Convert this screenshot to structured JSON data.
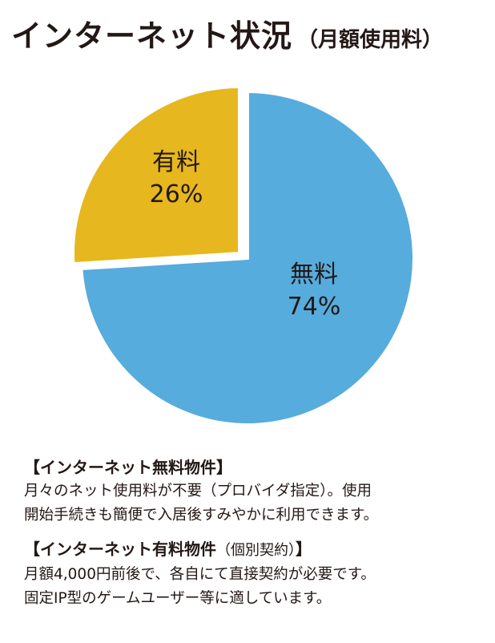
{
  "title": {
    "main": "インターネット状況",
    "sub": "（月額使用料）"
  },
  "chart_data": {
    "type": "pie",
    "title": "インターネット状況（月額使用料）",
    "slices": [
      {
        "name": "無料",
        "value": 74,
        "label": "74%",
        "color": "#56ACDD"
      },
      {
        "name": "有料",
        "value": 26,
        "label": "26%",
        "color": "#E6B71E"
      }
    ]
  },
  "notes": {
    "free": {
      "heading": "【インターネット無料物件】",
      "lines": [
        "月々のネット使用料が不要（プロバイダ指定）。使用",
        "開始手続きも簡便で入居後すみやかに利用できます。"
      ]
    },
    "paid": {
      "heading": "【インターネット有料物件",
      "heading_paren": "（個別契約）",
      "heading_close": "】",
      "lines": [
        "月額4,000円前後で、各自にて直接契約が必要です。",
        "固定IP型のゲームユーザー等に適しています。"
      ]
    }
  }
}
